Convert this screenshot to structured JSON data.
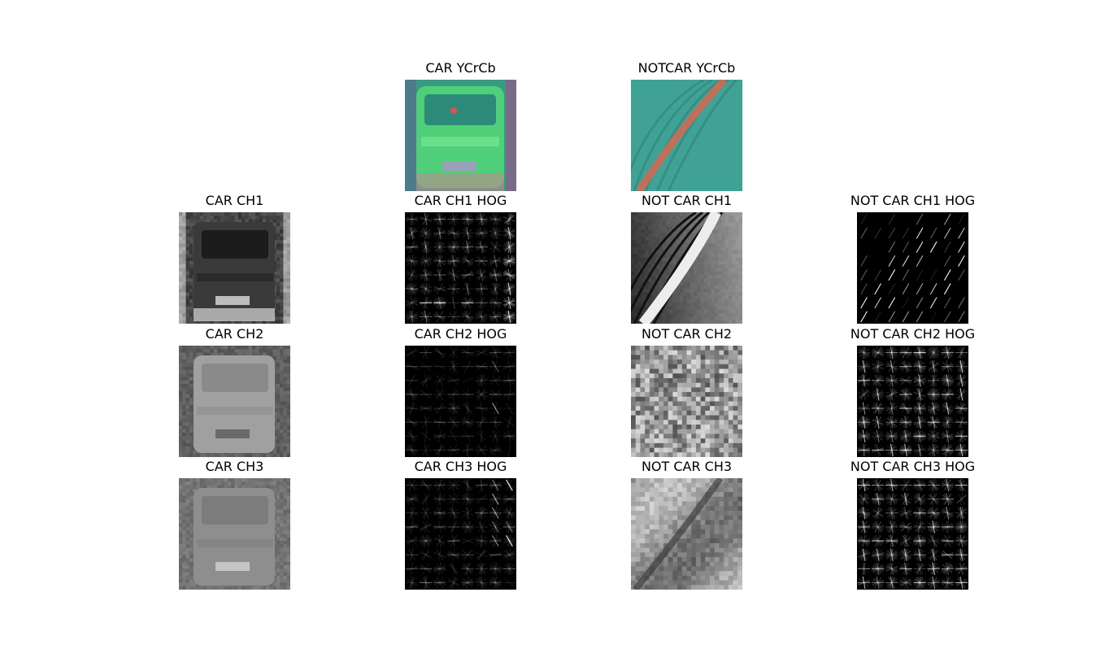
{
  "panels": {
    "car_ycrcb": {
      "title": "CAR YCrCb",
      "kind": "car-ycrcb"
    },
    "notcar_ycrcb": {
      "title": "NOTCAR YCrCb",
      "kind": "notcar-ycrcb"
    },
    "car_ch1": {
      "title": "CAR CH1",
      "kind": "car-ch1"
    },
    "car_ch1_hog": {
      "title": "CAR CH1 HOG",
      "kind": "car-hog1"
    },
    "notcar_ch1": {
      "title": "NOT CAR CH1",
      "kind": "notcar-ch1"
    },
    "notcar_ch1_hog": {
      "title": "NOT CAR CH1 HOG",
      "kind": "notcar-hog1"
    },
    "car_ch2": {
      "title": "CAR CH2",
      "kind": "car-ch2"
    },
    "car_ch2_hog": {
      "title": "CAR CH2 HOG",
      "kind": "car-hog2"
    },
    "notcar_ch2": {
      "title": "NOT CAR CH2",
      "kind": "notcar-ch2"
    },
    "notcar_ch2_hog": {
      "title": "NOT CAR CH2 HOG",
      "kind": "notcar-hog2"
    },
    "car_ch3": {
      "title": "CAR CH3",
      "kind": "car-ch3"
    },
    "car_ch3_hog": {
      "title": "CAR CH3 HOG",
      "kind": "car-hog3"
    },
    "notcar_ch3": {
      "title": "NOT CAR CH3",
      "kind": "notcar-ch3"
    },
    "notcar_ch3_hog": {
      "title": "NOT CAR CH3 HOG",
      "kind": "notcar-hog3"
    }
  },
  "colors": {
    "background": "#ffffff",
    "ycrcb_teal": "#3c9a88",
    "ycrcb_green": "#5ad878",
    "hog_background": "#000000",
    "hog_stroke": "#ffffff"
  }
}
